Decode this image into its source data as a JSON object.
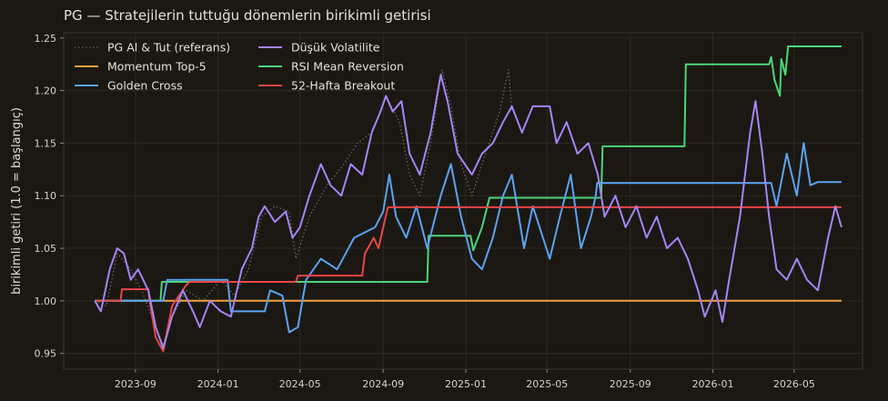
{
  "chart_data": {
    "type": "line",
    "title": "PG — Stratejilerin tuttuğu dönemlerin birikimli getirisi",
    "xlabel": "",
    "ylabel": "birikimli getiri (1.0 = başlangıç)",
    "ylim": [
      0.935,
      1.255
    ],
    "xlim": [
      "2023-05-18",
      "2026-08-10"
    ],
    "y_ticks": [
      "0.95",
      "1.00",
      "1.05",
      "1.10",
      "1.15",
      "1.20",
      "1.25"
    ],
    "x_ticks": [
      "2023-09",
      "2024-01",
      "2024-05",
      "2024-09",
      "2025-01",
      "2025-05",
      "2025-09",
      "2026-01",
      "2026-05"
    ],
    "grid": true,
    "legend_position": "top-left",
    "colors": {
      "background": "#1b1813",
      "grid": "#2c2923",
      "reference": "#6b655c",
      "momentum": "#f5a142",
      "golden": "#5ca3f0",
      "lowvol": "#a585f5",
      "rsi": "#4cd67a",
      "breakout": "#e84646"
    },
    "series": [
      {
        "name": "PG Al & Tut (referans)",
        "key": "ref",
        "style": "dotted",
        "color": "#6b655c",
        "points": [
          [
            "2023-07-03",
            1.0
          ],
          [
            "2023-07-20",
            0.995
          ],
          [
            "2023-08-05",
            1.045
          ],
          [
            "2023-08-25",
            1.03
          ],
          [
            "2023-09-10",
            1.01
          ],
          [
            "2023-10-01",
            0.975
          ],
          [
            "2023-10-12",
            0.958
          ],
          [
            "2023-10-25",
            0.985
          ],
          [
            "2023-11-15",
            1.01
          ],
          [
            "2023-12-10",
            1.0
          ],
          [
            "2024-01-05",
            1.02
          ],
          [
            "2024-01-25",
            1.005
          ],
          [
            "2024-02-15",
            1.03
          ],
          [
            "2024-03-05",
            1.08
          ],
          [
            "2024-03-25",
            1.09
          ],
          [
            "2024-04-15",
            1.085
          ],
          [
            "2024-04-25",
            1.04
          ],
          [
            "2024-05-15",
            1.08
          ],
          [
            "2024-06-10",
            1.11
          ],
          [
            "2024-07-05",
            1.13
          ],
          [
            "2024-07-25",
            1.15
          ],
          [
            "2024-08-15",
            1.16
          ],
          [
            "2024-09-05",
            1.195
          ],
          [
            "2024-09-25",
            1.17
          ],
          [
            "2024-10-10",
            1.12
          ],
          [
            "2024-10-25",
            1.1
          ],
          [
            "2024-11-10",
            1.15
          ],
          [
            "2024-11-27",
            1.22
          ],
          [
            "2024-12-10",
            1.185
          ],
          [
            "2024-12-25",
            1.13
          ],
          [
            "2025-01-10",
            1.1
          ],
          [
            "2025-01-30",
            1.14
          ],
          [
            "2025-02-20",
            1.18
          ],
          [
            "2025-03-05",
            1.22
          ],
          [
            "2025-03-10",
            1.18
          ]
        ]
      },
      {
        "name": "Momentum Top-5",
        "key": "mom",
        "style": "solid",
        "color": "#f5a142",
        "points": [
          [
            "2023-07-03",
            1.0
          ],
          [
            "2026-07-10",
            1.0
          ]
        ]
      },
      {
        "name": "Golden Cross",
        "key": "gc",
        "style": "solid",
        "color": "#5ca3f0",
        "points": [
          [
            "2023-07-03",
            1.0
          ],
          [
            "2023-10-12",
            1.0
          ],
          [
            "2023-10-18",
            1.02
          ],
          [
            "2024-01-15",
            1.02
          ],
          [
            "2024-01-20",
            0.99
          ],
          [
            "2024-03-10",
            0.99
          ],
          [
            "2024-03-18",
            1.01
          ],
          [
            "2024-04-05",
            1.005
          ],
          [
            "2024-04-15",
            0.97
          ],
          [
            "2024-04-28",
            0.975
          ],
          [
            "2024-05-10",
            1.02
          ],
          [
            "2024-06-01",
            1.04
          ],
          [
            "2024-06-25",
            1.03
          ],
          [
            "2024-07-20",
            1.06
          ],
          [
            "2024-08-20",
            1.07
          ],
          [
            "2024-09-01",
            1.085
          ],
          [
            "2024-09-10",
            1.12
          ],
          [
            "2024-09-20",
            1.08
          ],
          [
            "2024-10-05",
            1.06
          ],
          [
            "2024-10-20",
            1.09
          ],
          [
            "2024-11-05",
            1.05
          ],
          [
            "2024-11-25",
            1.1
          ],
          [
            "2024-12-10",
            1.13
          ],
          [
            "2024-12-25",
            1.08
          ],
          [
            "2025-01-10",
            1.04
          ],
          [
            "2025-01-25",
            1.03
          ],
          [
            "2025-02-10",
            1.06
          ],
          [
            "2025-02-25",
            1.1
          ],
          [
            "2025-03-10",
            1.12
          ],
          [
            "2025-03-28",
            1.05
          ],
          [
            "2025-04-10",
            1.09
          ],
          [
            "2025-04-25",
            1.06
          ],
          [
            "2025-05-05",
            1.04
          ],
          [
            "2025-05-20",
            1.08
          ],
          [
            "2025-06-05",
            1.12
          ],
          [
            "2025-06-20",
            1.05
          ],
          [
            "2025-07-05",
            1.08
          ],
          [
            "2025-07-12",
            1.1
          ],
          [
            "2025-07-14",
            1.112
          ],
          [
            "2026-03-28",
            1.112
          ],
          [
            "2026-04-05",
            1.09
          ],
          [
            "2026-04-20",
            1.14
          ],
          [
            "2026-05-05",
            1.1
          ],
          [
            "2026-05-15",
            1.15
          ],
          [
            "2026-05-25",
            1.11
          ],
          [
            "2026-06-05",
            1.113
          ],
          [
            "2026-07-10",
            1.113
          ]
        ]
      },
      {
        "name": "Düşük Volatilite",
        "key": "lv",
        "style": "solid",
        "color": "#a585f5",
        "points": [
          [
            "2023-07-03",
            1.0
          ],
          [
            "2023-07-12",
            0.99
          ],
          [
            "2023-07-25",
            1.03
          ],
          [
            "2023-08-05",
            1.05
          ],
          [
            "2023-08-15",
            1.045
          ],
          [
            "2023-08-25",
            1.02
          ],
          [
            "2023-09-05",
            1.03
          ],
          [
            "2023-09-20",
            1.01
          ],
          [
            "2023-10-01",
            0.975
          ],
          [
            "2023-10-12",
            0.955
          ],
          [
            "2023-10-25",
            0.985
          ],
          [
            "2023-11-10",
            1.01
          ],
          [
            "2023-11-25",
            0.99
          ],
          [
            "2023-12-05",
            0.975
          ],
          [
            "2023-12-20",
            1.0
          ],
          [
            "2024-01-05",
            0.99
          ],
          [
            "2024-01-20",
            0.985
          ],
          [
            "2024-02-05",
            1.03
          ],
          [
            "2024-02-20",
            1.05
          ],
          [
            "2024-03-01",
            1.08
          ],
          [
            "2024-03-10",
            1.09
          ],
          [
            "2024-03-25",
            1.075
          ],
          [
            "2024-04-10",
            1.085
          ],
          [
            "2024-04-20",
            1.06
          ],
          [
            "2024-05-01",
            1.07
          ],
          [
            "2024-05-15",
            1.1
          ],
          [
            "2024-06-01",
            1.13
          ],
          [
            "2024-06-15",
            1.11
          ],
          [
            "2024-07-01",
            1.1
          ],
          [
            "2024-07-15",
            1.13
          ],
          [
            "2024-08-01",
            1.12
          ],
          [
            "2024-08-15",
            1.16
          ],
          [
            "2024-08-28",
            1.18
          ],
          [
            "2024-09-05",
            1.195
          ],
          [
            "2024-09-15",
            1.18
          ],
          [
            "2024-09-28",
            1.19
          ],
          [
            "2024-10-10",
            1.14
          ],
          [
            "2024-10-25",
            1.12
          ],
          [
            "2024-11-10",
            1.16
          ],
          [
            "2024-11-25",
            1.215
          ],
          [
            "2024-12-05",
            1.19
          ],
          [
            "2024-12-20",
            1.14
          ],
          [
            "2025-01-10",
            1.12
          ],
          [
            "2025-01-25",
            1.14
          ],
          [
            "2025-02-10",
            1.15
          ],
          [
            "2025-02-25",
            1.17
          ],
          [
            "2025-03-10",
            1.185
          ],
          [
            "2025-03-25",
            1.16
          ],
          [
            "2025-04-10",
            1.185
          ],
          [
            "2025-05-05",
            1.185
          ],
          [
            "2025-05-15",
            1.15
          ],
          [
            "2025-05-30",
            1.17
          ],
          [
            "2025-06-15",
            1.14
          ],
          [
            "2025-07-01",
            1.15
          ],
          [
            "2025-07-15",
            1.12
          ],
          [
            "2025-07-25",
            1.08
          ],
          [
            "2025-08-10",
            1.1
          ],
          [
            "2025-08-25",
            1.07
          ],
          [
            "2025-09-10",
            1.09
          ],
          [
            "2025-09-25",
            1.06
          ],
          [
            "2025-10-10",
            1.08
          ],
          [
            "2025-10-25",
            1.05
          ],
          [
            "2025-11-10",
            1.06
          ],
          [
            "2025-11-25",
            1.04
          ],
          [
            "2025-12-10",
            1.01
          ],
          [
            "2025-12-20",
            0.985
          ],
          [
            "2026-01-05",
            1.01
          ],
          [
            "2026-01-15",
            0.98
          ],
          [
            "2026-01-25",
            1.02
          ],
          [
            "2026-02-10",
            1.08
          ],
          [
            "2026-02-25",
            1.16
          ],
          [
            "2026-03-05",
            1.19
          ],
          [
            "2026-03-15",
            1.14
          ],
          [
            "2026-03-25",
            1.08
          ],
          [
            "2026-04-05",
            1.03
          ],
          [
            "2026-04-20",
            1.02
          ],
          [
            "2026-05-05",
            1.04
          ],
          [
            "2026-05-20",
            1.02
          ],
          [
            "2026-06-05",
            1.01
          ],
          [
            "2026-06-20",
            1.06
          ],
          [
            "2026-07-01",
            1.09
          ],
          [
            "2026-07-10",
            1.07
          ]
        ]
      },
      {
        "name": "RSI Mean Reversion",
        "key": "rsi",
        "style": "solid",
        "color": "#4cd67a",
        "points": [
          [
            "2023-07-03",
            1.0
          ],
          [
            "2023-10-08",
            1.0
          ],
          [
            "2023-10-10",
            1.018
          ],
          [
            "2024-11-05",
            1.018
          ],
          [
            "2024-11-07",
            1.062
          ],
          [
            "2025-01-08",
            1.062
          ],
          [
            "2025-01-12",
            1.048
          ],
          [
            "2025-01-25",
            1.07
          ],
          [
            "2025-02-05",
            1.098
          ],
          [
            "2025-07-20",
            1.098
          ],
          [
            "2025-07-22",
            1.147
          ],
          [
            "2025-11-20",
            1.147
          ],
          [
            "2025-11-22",
            1.225
          ],
          [
            "2026-03-25",
            1.225
          ],
          [
            "2026-03-28",
            1.232
          ],
          [
            "2026-04-02",
            1.21
          ],
          [
            "2026-04-10",
            1.195
          ],
          [
            "2026-04-12",
            1.23
          ],
          [
            "2026-04-18",
            1.215
          ],
          [
            "2026-04-22",
            1.242
          ],
          [
            "2026-07-10",
            1.242
          ]
        ]
      },
      {
        "name": "52-Hafta Breakout",
        "key": "bo",
        "style": "solid",
        "color": "#e84646",
        "points": [
          [
            "2023-07-03",
            1.0
          ],
          [
            "2023-08-10",
            1.0
          ],
          [
            "2023-08-12",
            1.011
          ],
          [
            "2023-09-20",
            1.011
          ],
          [
            "2023-09-22",
            1.0
          ],
          [
            "2023-10-01",
            0.965
          ],
          [
            "2023-10-12",
            0.952
          ],
          [
            "2023-10-25",
            0.995
          ],
          [
            "2023-11-15",
            1.015
          ],
          [
            "2023-11-20",
            1.018
          ],
          [
            "2024-04-25",
            1.018
          ],
          [
            "2024-04-28",
            1.024
          ],
          [
            "2024-08-01",
            1.024
          ],
          [
            "2024-08-05",
            1.045
          ],
          [
            "2024-08-18",
            1.06
          ],
          [
            "2024-08-25",
            1.05
          ],
          [
            "2024-09-01",
            1.07
          ],
          [
            "2024-09-08",
            1.089
          ],
          [
            "2026-07-10",
            1.089
          ]
        ]
      }
    ]
  }
}
